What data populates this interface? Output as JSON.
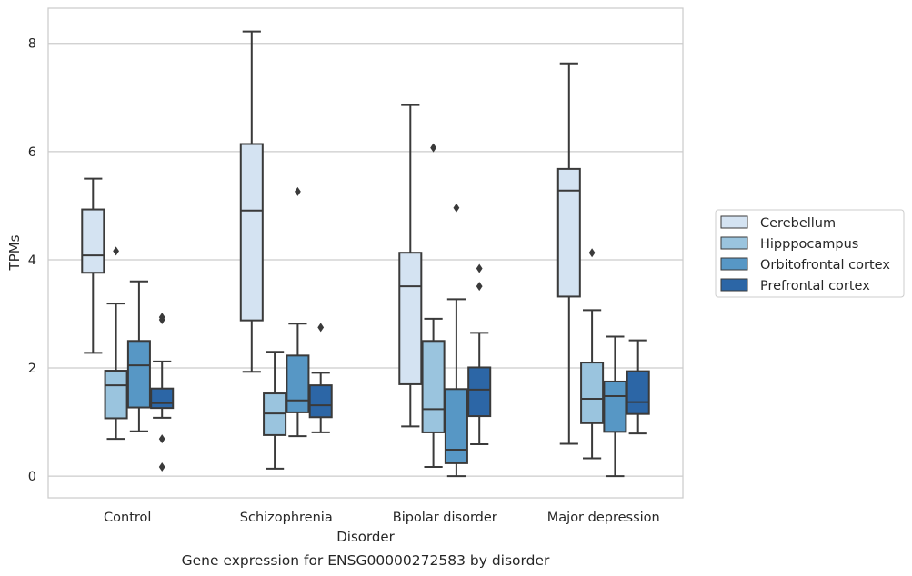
{
  "chart_data": {
    "type": "box",
    "caption": "Gene expression for ENSG00000272583 by disorder",
    "xlabel": "Disorder",
    "ylabel": "TPMs",
    "ylim": [
      -0.4,
      8.65
    ],
    "yticks": [
      0,
      2,
      4,
      6,
      8
    ],
    "grid": true,
    "legend_position": "right",
    "categories": [
      "Control",
      "Schizophrenia",
      "Bipolar disorder",
      "Major depression"
    ],
    "series": [
      {
        "name": "Cerebellum",
        "color": "#d4e3f2",
        "boxes": [
          {
            "whisker_low": 2.28,
            "q1": 3.76,
            "median": 4.08,
            "q3": 4.93,
            "whisker_high": 5.5,
            "outliers": []
          },
          {
            "whisker_low": 1.93,
            "q1": 2.88,
            "median": 4.91,
            "q3": 6.14,
            "whisker_high": 8.22,
            "outliers": []
          },
          {
            "whisker_low": 0.92,
            "q1": 1.7,
            "median": 3.51,
            "q3": 4.13,
            "whisker_high": 6.86,
            "outliers": []
          },
          {
            "whisker_low": 0.6,
            "q1": 3.32,
            "median": 5.28,
            "q3": 5.68,
            "whisker_high": 7.63,
            "outliers": []
          }
        ]
      },
      {
        "name": "Hipppocampus",
        "color": "#9ac4de",
        "boxes": [
          {
            "whisker_low": 0.69,
            "q1": 1.07,
            "median": 1.68,
            "q3": 1.95,
            "whisker_high": 3.19,
            "outliers": [
              4.16
            ]
          },
          {
            "whisker_low": 0.14,
            "q1": 0.76,
            "median": 1.16,
            "q3": 1.53,
            "whisker_high": 2.3,
            "outliers": []
          },
          {
            "whisker_low": 0.17,
            "q1": 0.81,
            "median": 1.24,
            "q3": 2.5,
            "whisker_high": 2.91,
            "outliers": [
              6.07
            ]
          },
          {
            "whisker_low": 0.33,
            "q1": 0.98,
            "median": 1.43,
            "q3": 2.1,
            "whisker_high": 3.07,
            "outliers": [
              4.13
            ]
          }
        ]
      },
      {
        "name": "Orbitofrontal cortex",
        "color": "#5797c5",
        "boxes": [
          {
            "whisker_low": 0.83,
            "q1": 1.27,
            "median": 2.05,
            "q3": 2.5,
            "whisker_high": 3.6,
            "outliers": []
          },
          {
            "whisker_low": 0.74,
            "q1": 1.18,
            "median": 1.4,
            "q3": 2.23,
            "whisker_high": 2.82,
            "outliers": [
              5.26
            ]
          },
          {
            "whisker_low": 0.0,
            "q1": 0.24,
            "median": 0.49,
            "q3": 1.61,
            "whisker_high": 3.27,
            "outliers": [
              4.96
            ]
          },
          {
            "whisker_low": 0.0,
            "q1": 0.82,
            "median": 1.48,
            "q3": 1.75,
            "whisker_high": 2.58,
            "outliers": []
          }
        ]
      },
      {
        "name": "Prefrontal cortex",
        "color": "#2c66a6",
        "boxes": [
          {
            "whisker_low": 1.08,
            "q1": 1.26,
            "median": 1.35,
            "q3": 1.62,
            "whisker_high": 2.12,
            "outliers": [
              2.94,
              2.89,
              0.69,
              0.17
            ]
          },
          {
            "whisker_low": 0.81,
            "q1": 1.09,
            "median": 1.31,
            "q3": 1.68,
            "whisker_high": 1.91,
            "outliers": [
              2.75
            ]
          },
          {
            "whisker_low": 0.59,
            "q1": 1.11,
            "median": 1.6,
            "q3": 2.01,
            "whisker_high": 2.65,
            "outliers": [
              3.84,
              3.51
            ]
          },
          {
            "whisker_low": 0.79,
            "q1": 1.15,
            "median": 1.37,
            "q3": 1.94,
            "whisker_high": 2.51,
            "outliers": []
          }
        ]
      }
    ]
  }
}
